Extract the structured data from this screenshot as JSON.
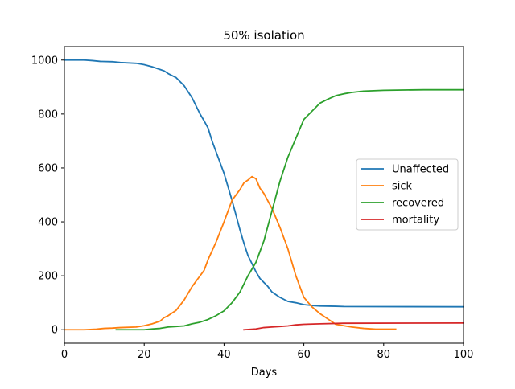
{
  "chart_data": {
    "type": "line",
    "title": "50% isolation",
    "xlabel": "Days",
    "ylabel": "",
    "xlim": [
      0,
      100
    ],
    "ylim": [
      -50,
      1050
    ],
    "xticks": [
      0,
      20,
      40,
      60,
      80,
      100
    ],
    "yticks": [
      0,
      200,
      400,
      600,
      800,
      1000
    ],
    "grid": false,
    "legend_position": "center-right",
    "series": [
      {
        "name": "Unaffected",
        "color": "#1f77b4",
        "points": [
          [
            0,
            1000
          ],
          [
            5,
            1000
          ],
          [
            7,
            998
          ],
          [
            9,
            995
          ],
          [
            12,
            994
          ],
          [
            14,
            991
          ],
          [
            18,
            988
          ],
          [
            20,
            983
          ],
          [
            22,
            975
          ],
          [
            24,
            965
          ],
          [
            25,
            960
          ],
          [
            26,
            950
          ],
          [
            28,
            935
          ],
          [
            30,
            905
          ],
          [
            32,
            860
          ],
          [
            34,
            800
          ],
          [
            35,
            775
          ],
          [
            36,
            748
          ],
          [
            37,
            700
          ],
          [
            38,
            660
          ],
          [
            40,
            580
          ],
          [
            42,
            480
          ],
          [
            44,
            370
          ],
          [
            45,
            320
          ],
          [
            46,
            275
          ],
          [
            48,
            215
          ],
          [
            49,
            190
          ],
          [
            50,
            175
          ],
          [
            51,
            160
          ],
          [
            52,
            140
          ],
          [
            54,
            120
          ],
          [
            56,
            105
          ],
          [
            58,
            100
          ],
          [
            60,
            93
          ],
          [
            62,
            90
          ],
          [
            64,
            88
          ],
          [
            68,
            87
          ],
          [
            70,
            86
          ],
          [
            100,
            85
          ]
        ]
      },
      {
        "name": "sick",
        "color": "#ff7f0e",
        "points": [
          [
            0,
            0
          ],
          [
            5,
            0
          ],
          [
            8,
            2
          ],
          [
            10,
            5
          ],
          [
            12,
            6
          ],
          [
            14,
            8
          ],
          [
            18,
            10
          ],
          [
            20,
            15
          ],
          [
            22,
            22
          ],
          [
            24,
            32
          ],
          [
            25,
            45
          ],
          [
            26,
            52
          ],
          [
            28,
            72
          ],
          [
            30,
            110
          ],
          [
            32,
            160
          ],
          [
            34,
            200
          ],
          [
            35,
            220
          ],
          [
            36,
            260
          ],
          [
            38,
            325
          ],
          [
            40,
            400
          ],
          [
            42,
            480
          ],
          [
            44,
            520
          ],
          [
            45,
            545
          ],
          [
            46,
            555
          ],
          [
            47,
            568
          ],
          [
            48,
            560
          ],
          [
            49,
            525
          ],
          [
            50,
            505
          ],
          [
            52,
            450
          ],
          [
            54,
            380
          ],
          [
            56,
            300
          ],
          [
            58,
            200
          ],
          [
            60,
            120
          ],
          [
            62,
            85
          ],
          [
            64,
            60
          ],
          [
            66,
            40
          ],
          [
            68,
            20
          ],
          [
            70,
            15
          ],
          [
            72,
            10
          ],
          [
            75,
            5
          ],
          [
            78,
            2
          ],
          [
            83,
            2
          ]
        ]
      },
      {
        "name": "recovered",
        "color": "#2ca02c",
        "points": [
          [
            13,
            0
          ],
          [
            20,
            0
          ],
          [
            22,
            3
          ],
          [
            24,
            5
          ],
          [
            26,
            10
          ],
          [
            28,
            12
          ],
          [
            30,
            14
          ],
          [
            32,
            22
          ],
          [
            34,
            28
          ],
          [
            36,
            38
          ],
          [
            38,
            52
          ],
          [
            40,
            70
          ],
          [
            42,
            100
          ],
          [
            44,
            140
          ],
          [
            46,
            200
          ],
          [
            48,
            250
          ],
          [
            50,
            330
          ],
          [
            52,
            440
          ],
          [
            54,
            550
          ],
          [
            56,
            640
          ],
          [
            58,
            710
          ],
          [
            60,
            780
          ],
          [
            62,
            810
          ],
          [
            64,
            840
          ],
          [
            66,
            855
          ],
          [
            68,
            868
          ],
          [
            70,
            875
          ],
          [
            72,
            880
          ],
          [
            75,
            885
          ],
          [
            80,
            888
          ],
          [
            90,
            890
          ],
          [
            100,
            890
          ]
        ]
      },
      {
        "name": "mortality",
        "color": "#d62728",
        "points": [
          [
            45,
            0
          ],
          [
            48,
            3
          ],
          [
            50,
            8
          ],
          [
            52,
            10
          ],
          [
            54,
            12
          ],
          [
            56,
            14
          ],
          [
            58,
            18
          ],
          [
            60,
            20
          ],
          [
            64,
            22
          ],
          [
            70,
            24
          ],
          [
            100,
            25
          ]
        ]
      }
    ]
  }
}
